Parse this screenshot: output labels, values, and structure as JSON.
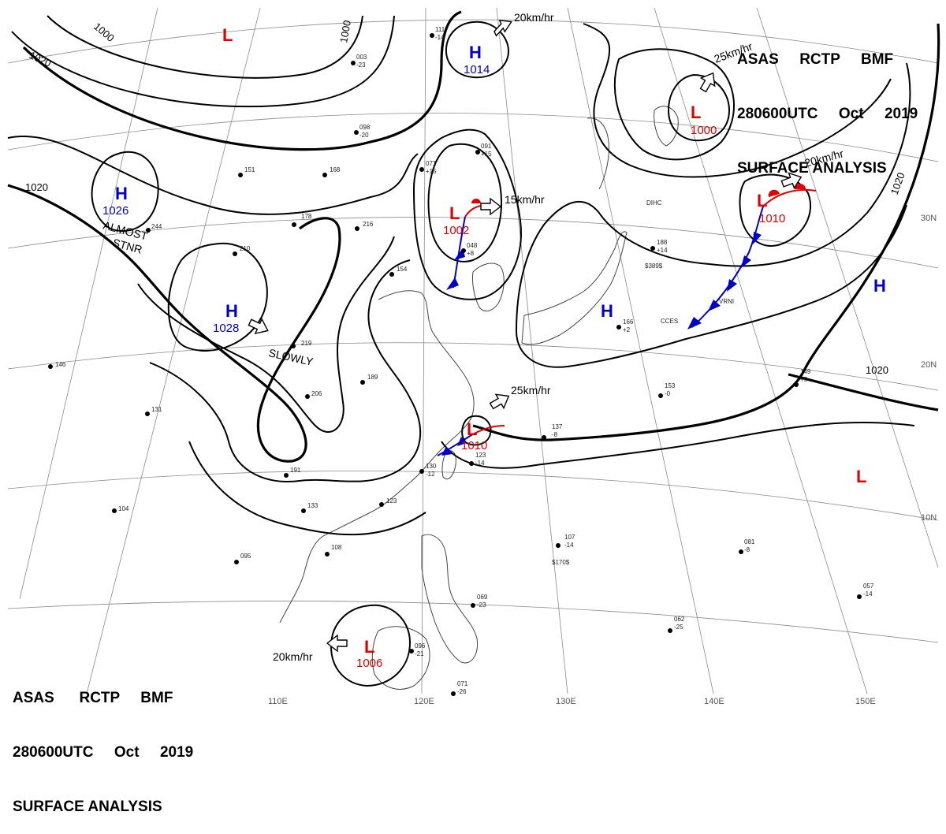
{
  "header": {
    "agency": "ASAS",
    "station": "RCTP",
    "unit": "BMF",
    "time": "280600UTC",
    "month": "Oct",
    "year": "2019",
    "title": "SURFACE ANALYSIS"
  },
  "colors": {
    "high": "#0000cc",
    "low": "#e00000",
    "isobar": "#000000",
    "grid": "#8a8a8a",
    "coast": "#444444"
  },
  "grid_labels": {
    "lon": [
      "110E",
      "120E",
      "130E",
      "140E",
      "150E"
    ],
    "lat": [
      "30N",
      "20N",
      "10N"
    ]
  },
  "isobar_labels": [
    "1000",
    "1000",
    "1020",
    "1020",
    "1020",
    "1020"
  ],
  "pressure_centers": [
    {
      "type": "H",
      "value": "1026"
    },
    {
      "type": "H",
      "value": "1028"
    },
    {
      "type": "H",
      "value": "1014"
    },
    {
      "type": "H",
      "value": ""
    },
    {
      "type": "H",
      "value": ""
    },
    {
      "type": "L",
      "value": "1002"
    },
    {
      "type": "L",
      "value": "1000"
    },
    {
      "type": "L",
      "value": "1010"
    },
    {
      "type": "L",
      "value": "1010"
    },
    {
      "type": "L",
      "value": "1006"
    },
    {
      "type": "L",
      "value": ""
    },
    {
      "type": "L",
      "value": ""
    }
  ],
  "movements": [
    "20km/hr",
    "15km/hr",
    "25km/hr",
    "20km/hr",
    "25km/hr",
    "20km/hr",
    "SLOWLY"
  ],
  "annotations": [
    "ALMOST",
    "STNR"
  ],
  "station_samples": [
    "111",
    "-14",
    "003",
    "-23",
    "098",
    "-20",
    "091",
    "+15",
    "071",
    "+15",
    "048",
    "+8",
    "123",
    "-14",
    "130",
    "-12",
    "188",
    "+14",
    "166",
    "+2",
    "153",
    "-0",
    "149",
    "+5",
    "137",
    "-8",
    "107",
    "-14",
    "081",
    "-8",
    "057",
    "-14",
    "062",
    "-25",
    "071",
    "-26",
    "069",
    "-23",
    "096",
    "-21",
    "104",
    "146",
    "131",
    "095",
    "108",
    "133",
    "123",
    "191",
    "206",
    "219",
    "216",
    "189",
    "178",
    "154",
    "168",
    "151",
    "210",
    "244",
    "DIHC",
    "CCES",
    "VRNI",
    "$389$",
    "$170$"
  ]
}
